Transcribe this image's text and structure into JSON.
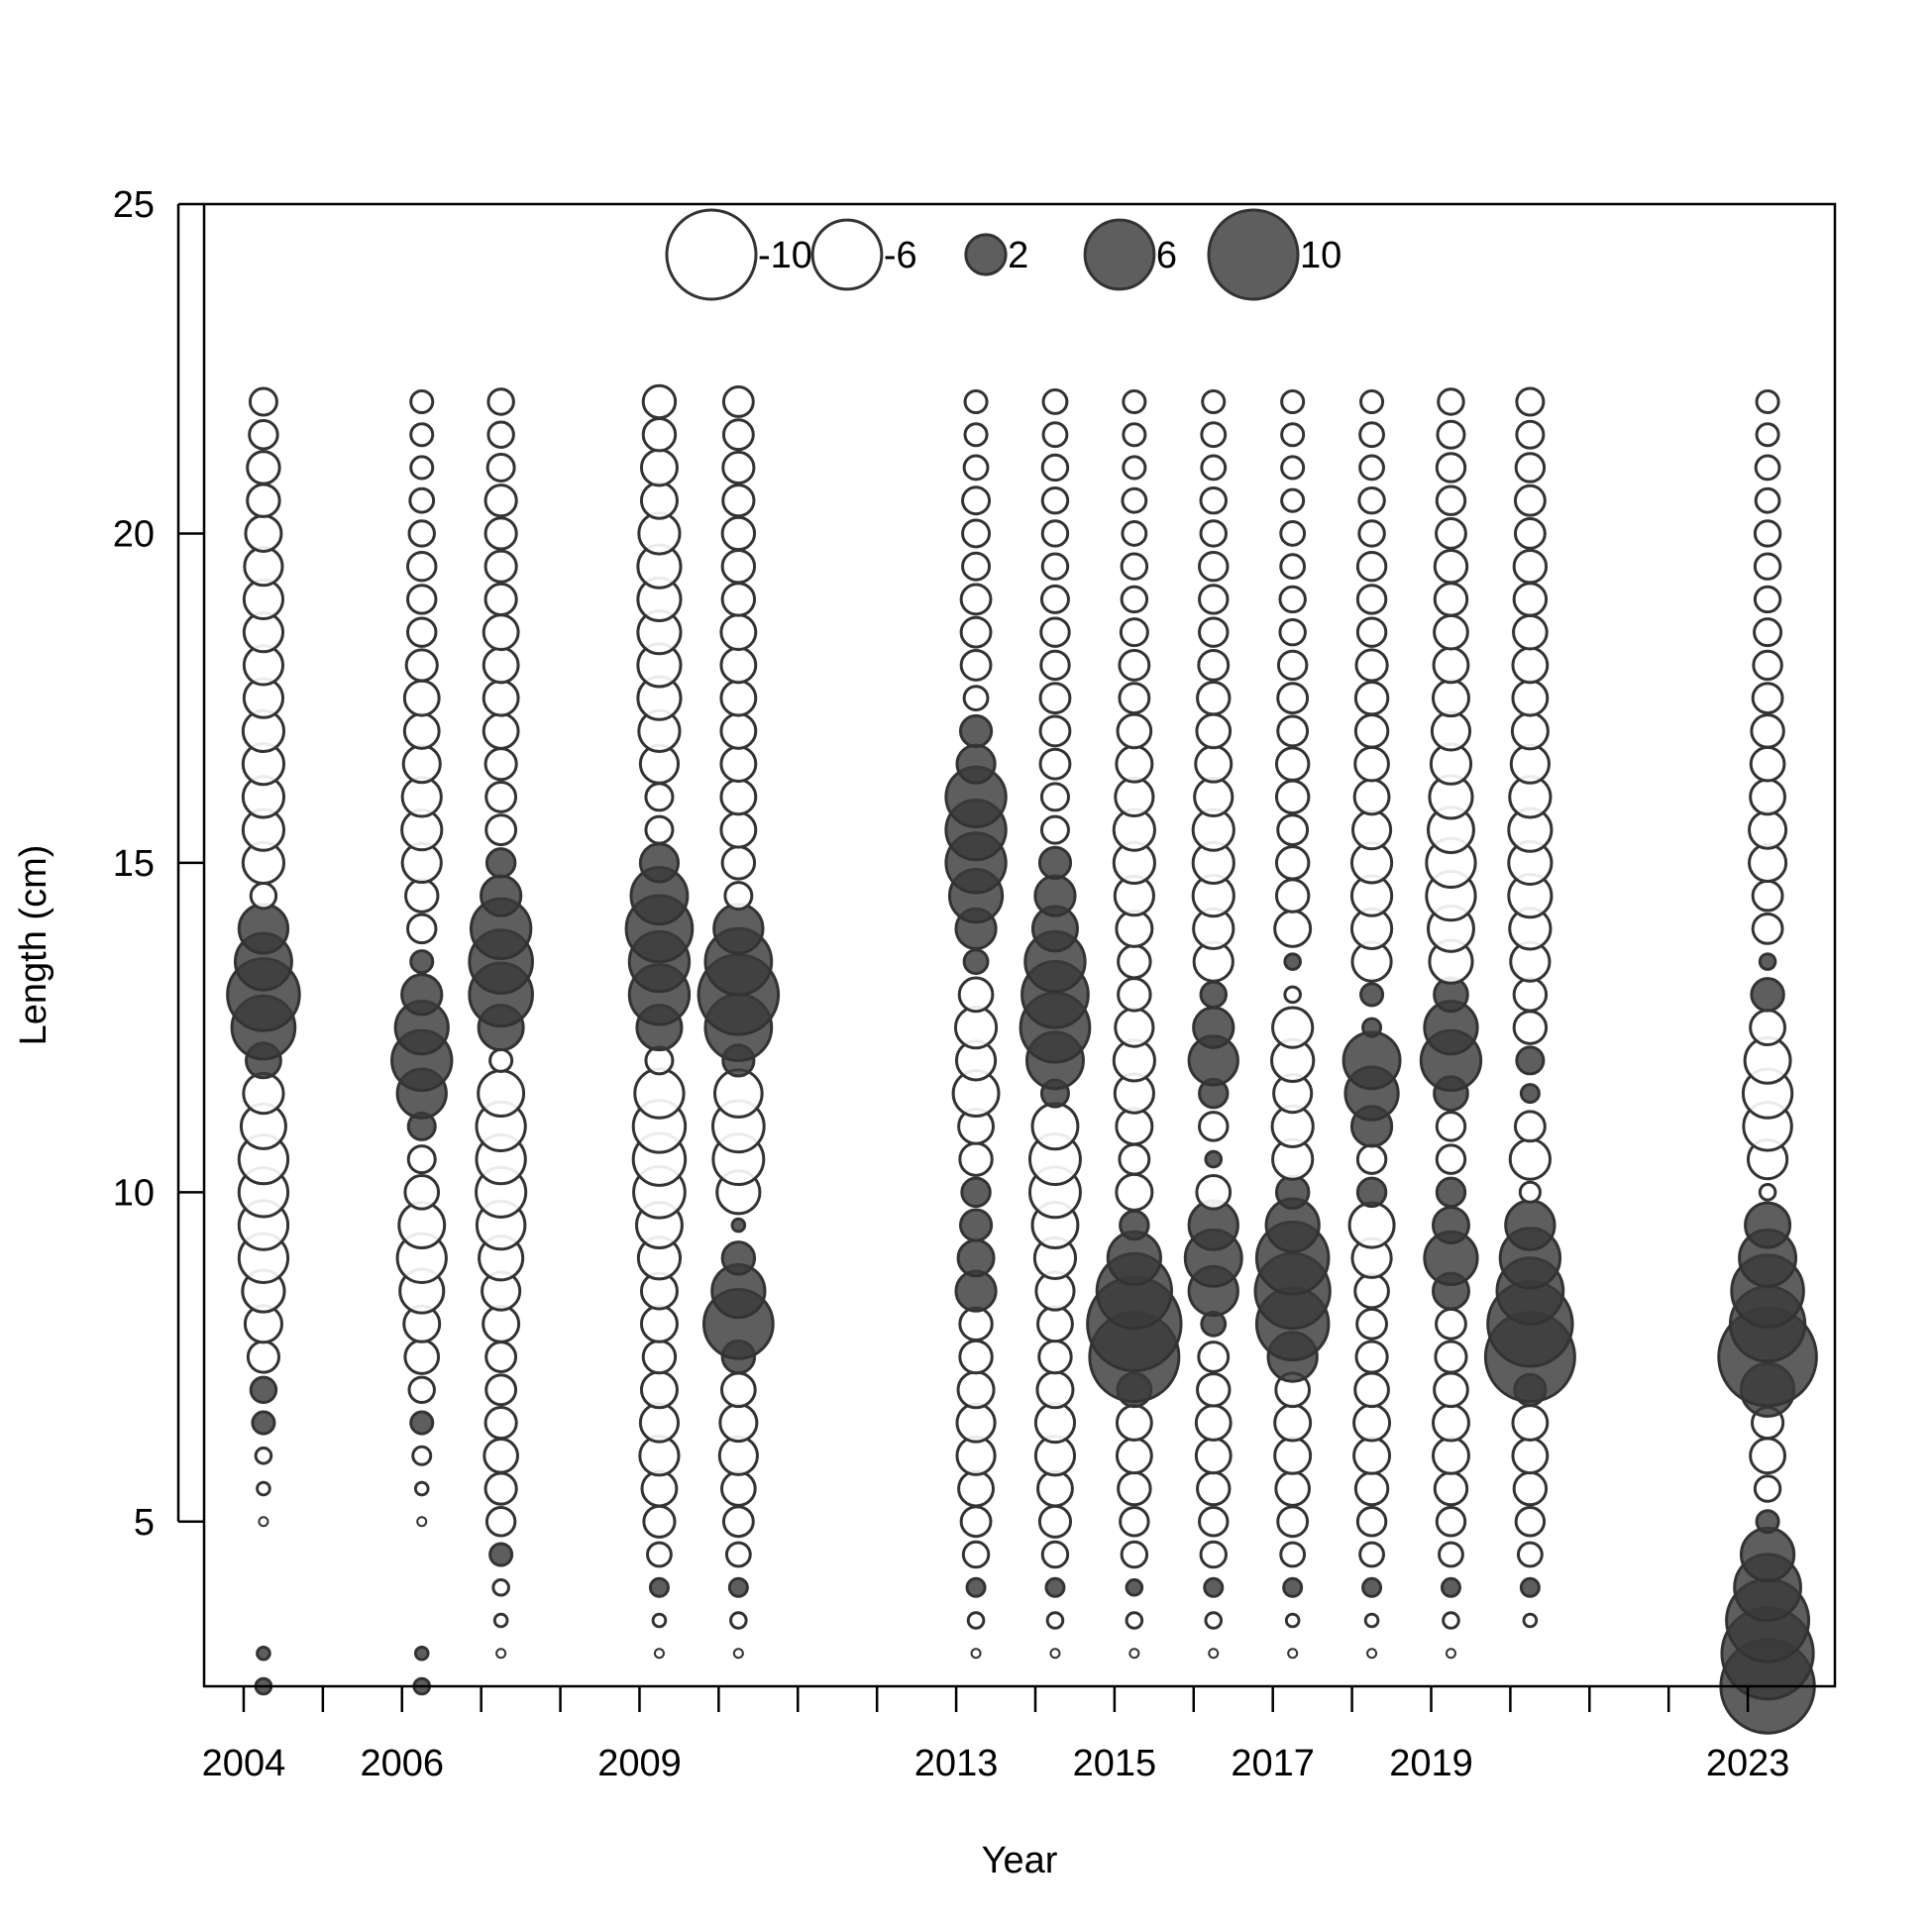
{
  "chart_data": {
    "type": "scatter",
    "subtype": "bubble",
    "title": "",
    "xlabel": "Year",
    "ylabel": "Length (cm)",
    "xlim": [
      2003.5,
      2024.1
    ],
    "ylim": [
      2.5,
      25
    ],
    "x_ticks": [
      2004,
      2005,
      2006,
      2007,
      2008,
      2009,
      2010,
      2011,
      2012,
      2013,
      2014,
      2015,
      2016,
      2017,
      2018,
      2019,
      2020,
      2021,
      2022,
      2023
    ],
    "x_tick_labels": [
      {
        "value": 2004,
        "label": "2004"
      },
      {
        "value": 2006,
        "label": "2006"
      },
      {
        "value": 2009,
        "label": "2009"
      },
      {
        "value": 2013,
        "label": "2013"
      },
      {
        "value": 2015,
        "label": "2015"
      },
      {
        "value": 2017,
        "label": "2017"
      },
      {
        "value": 2019,
        "label": "2019"
      },
      {
        "value": 2023,
        "label": "2023"
      }
    ],
    "y_ticks": [
      5,
      10,
      15,
      20,
      25
    ],
    "grid": false,
    "legend_position": "top-center",
    "legend": [
      {
        "value": -10,
        "label": "-10"
      },
      {
        "value": -6,
        "label": "-6"
      },
      {
        "value": 2,
        "label": "2"
      },
      {
        "value": 6,
        "label": "6"
      },
      {
        "value": 10,
        "label": "10"
      }
    ],
    "colors": {
      "positive_fill": "#3a3a3a",
      "negative_fill": "#ffffff",
      "stroke": "#333333"
    },
    "sample_year_offset": 0.25,
    "series": [
      {
        "year": 2004,
        "lengths": [
          2.5,
          3,
          3.5,
          4,
          4.5,
          5,
          5.5,
          6,
          6.5,
          7,
          7.5,
          8,
          8.5,
          9,
          9.5,
          10,
          10.5,
          11,
          11.5,
          12,
          12.5,
          13,
          13.5,
          14,
          14.5,
          15,
          15.5,
          16,
          16.5,
          17,
          17.5,
          18,
          18.5,
          19,
          19.5,
          20,
          20.5,
          21,
          21.5,
          22
        ],
        "residuals": [
          0.3,
          0.2,
          0,
          0,
          0,
          -0.1,
          -0.2,
          -0.3,
          0.6,
          0.8,
          -1.2,
          -1.7,
          -2.2,
          -3.0,
          -3.0,
          -3.0,
          -3.0,
          -2.5,
          -2.0,
          1.5,
          5.0,
          6.5,
          4.0,
          3.0,
          -0.8,
          -2.1,
          -2.1,
          -2.1,
          -2.1,
          -2.1,
          -1.9,
          -1.9,
          -1.9,
          -1.9,
          -1.8,
          -1.6,
          -1.3,
          -1.3,
          -1.0,
          -0.9
        ]
      },
      {
        "year": 2006,
        "lengths": [
          2.5,
          3,
          3.5,
          4,
          4.5,
          5,
          5.5,
          6,
          6.5,
          7,
          7.5,
          8,
          8.5,
          9,
          9.5,
          10,
          10.5,
          11,
          11.5,
          12,
          12.5,
          13,
          13.5,
          14,
          14.5,
          15,
          15.5,
          16,
          16.5,
          17,
          17.5,
          18,
          18.5,
          19,
          19.5,
          20,
          20.5,
          21,
          21.5,
          22
        ],
        "residuals": [
          0.3,
          0.2,
          0,
          0,
          0,
          -0.1,
          -0.2,
          -0.4,
          0.6,
          -0.8,
          -1.4,
          -1.6,
          -2.4,
          -3.0,
          -2.6,
          -1.4,
          -0.9,
          0.9,
          3.0,
          4.5,
          3.5,
          2.0,
          0.6,
          -1.0,
          -1.3,
          -1.9,
          -2.0,
          -1.9,
          -1.7,
          -1.5,
          -1.5,
          -1.2,
          -1.0,
          -1.0,
          -1.0,
          -0.8,
          -0.7,
          -0.6,
          -0.6,
          -0.6
        ]
      },
      {
        "year": 2007,
        "lengths": [
          3,
          3.5,
          4,
          4.5,
          5,
          5.5,
          6,
          6.5,
          7,
          7.5,
          8,
          8.5,
          9,
          9.5,
          10,
          10.5,
          11,
          11.5,
          12,
          12.5,
          13,
          13.5,
          14,
          14.5,
          15,
          15.5,
          16,
          16.5,
          17,
          17.5,
          18,
          18.5,
          19,
          19.5,
          20,
          20.5,
          21,
          21.5,
          22
        ],
        "residuals": [
          -0.1,
          -0.2,
          -0.3,
          0.6,
          -1.0,
          -1.2,
          -1.4,
          -1.2,
          -1.1,
          -1.1,
          -1.6,
          -1.8,
          -2.4,
          -2.9,
          -3.1,
          -3.0,
          -3.0,
          -2.6,
          -0.6,
          2.5,
          5.0,
          5.0,
          4.5,
          2.0,
          1.0,
          -1.1,
          -1.1,
          -1.2,
          -1.5,
          -1.5,
          -1.5,
          -1.5,
          -1.2,
          -1.2,
          -1.2,
          -1.2,
          -0.9,
          -0.8,
          -0.8
        ]
      },
      {
        "year": 2009,
        "lengths": [
          3,
          3.5,
          4,
          4.5,
          5,
          5.5,
          6,
          6.5,
          7,
          7.5,
          8,
          8.5,
          9,
          9.5,
          10,
          10.5,
          11,
          11.5,
          12,
          12.5,
          13,
          13.5,
          14,
          14.5,
          15,
          15.5,
          16,
          16.5,
          17,
          17.5,
          18,
          18.5,
          19,
          19.5,
          20,
          20.5,
          21,
          21.5,
          22
        ],
        "residuals": [
          -0.1,
          -0.2,
          0.4,
          -0.7,
          -1.2,
          -1.5,
          -1.9,
          -1.8,
          -1.6,
          -1.3,
          -1.6,
          -1.6,
          -2.2,
          -2.6,
          -3.3,
          -3.4,
          -3.4,
          -3.0,
          -0.9,
          2.5,
          4.5,
          4.5,
          5.5,
          4.0,
          1.8,
          -0.9,
          -0.9,
          -1.8,
          -2.1,
          -2.3,
          -2.3,
          -2.3,
          -2.3,
          -2.3,
          -2.1,
          -1.6,
          -1.6,
          -1.3,
          -1.3
        ]
      },
      {
        "year": 2010,
        "lengths": [
          3,
          3.5,
          4,
          4.5,
          5,
          5.5,
          6,
          6.5,
          7,
          7.5,
          8,
          8.5,
          9,
          9.5,
          10,
          10.5,
          11,
          11.5,
          12,
          12.5,
          13,
          13.5,
          14,
          14.5,
          15,
          15.5,
          16,
          16.5,
          17,
          17.5,
          18,
          18.5,
          19,
          19.5,
          20,
          20.5,
          21,
          21.5,
          22
        ],
        "residuals": [
          -0.1,
          -0.3,
          0.4,
          -0.7,
          -1.1,
          -1.4,
          -1.8,
          -1.7,
          -1.4,
          1.3,
          6.0,
          3.5,
          1.3,
          0.2,
          -2.3,
          -3.2,
          -3.3,
          -2.8,
          1.2,
          5.5,
          8.0,
          5.5,
          3.0,
          -0.9,
          -1.3,
          -1.5,
          -1.5,
          -1.5,
          -1.5,
          -1.5,
          -1.5,
          -1.5,
          -1.3,
          -1.3,
          -1.3,
          -1.2,
          -1.2,
          -1.1,
          -1.1
        ]
      },
      {
        "year": 2013,
        "lengths": [
          3,
          3.5,
          4,
          4.5,
          5,
          5.5,
          6,
          6.5,
          7,
          7.5,
          8,
          8.5,
          9,
          9.5,
          10,
          10.5,
          11,
          11.5,
          12,
          12.5,
          13,
          13.5,
          14,
          14.5,
          15,
          15.5,
          16,
          16.5,
          17,
          17.5,
          18,
          18.5,
          19,
          19.5,
          20,
          20.5,
          21,
          21.5,
          22
        ],
        "residuals": [
          -0.1,
          -0.3,
          0.4,
          -0.8,
          -1.1,
          -1.5,
          -1.8,
          -1.8,
          -1.6,
          -1.3,
          -1.3,
          2.0,
          1.6,
          1.2,
          1.0,
          -1.3,
          -1.5,
          -2.6,
          -1.9,
          -2.1,
          -1.4,
          0.7,
          2.0,
          3.5,
          4.5,
          4.5,
          4.5,
          1.8,
          1.2,
          -0.7,
          -1.1,
          -1.1,
          -1.1,
          -0.9,
          -0.9,
          -0.9,
          -0.7,
          -0.6,
          -0.6
        ]
      },
      {
        "year": 2014,
        "lengths": [
          3,
          3.5,
          4,
          4.5,
          5,
          5.5,
          6,
          6.5,
          7,
          7.5,
          8,
          8.5,
          9,
          9.5,
          10,
          10.5,
          11,
          11.5,
          12,
          12.5,
          13,
          13.5,
          14,
          14.5,
          15,
          15.5,
          16,
          16.5,
          17,
          17.5,
          18,
          18.5,
          19,
          19.5,
          20,
          20.5,
          21,
          21.5,
          22
        ],
        "residuals": [
          -0.1,
          -0.3,
          0.4,
          -0.8,
          -1.2,
          -1.5,
          -1.9,
          -1.9,
          -1.6,
          -1.3,
          -1.5,
          -1.8,
          -2.1,
          -2.6,
          -3.2,
          -3.2,
          -2.6,
          0.9,
          4.0,
          6.0,
          5.5,
          4.5,
          2.5,
          2.0,
          1.2,
          -0.9,
          -0.9,
          -1.1,
          -1.1,
          -1.1,
          -1.0,
          -1.0,
          -0.9,
          -0.8,
          -0.8,
          -0.8,
          -0.8,
          -0.7,
          -0.7
        ]
      },
      {
        "year": 2015,
        "lengths": [
          3,
          3.5,
          4,
          4.5,
          5,
          5.5,
          6,
          6.5,
          7,
          7.5,
          8,
          8.5,
          9,
          9.5,
          10,
          10.5,
          11,
          11.5,
          12,
          12.5,
          13,
          13.5,
          14,
          14.5,
          15,
          15.5,
          16,
          16.5,
          17,
          17.5,
          18,
          18.5,
          19,
          19.5,
          20,
          20.5,
          21,
          21.5,
          22
        ],
        "residuals": [
          -0.1,
          -0.3,
          0.3,
          -0.8,
          -1.0,
          -1.3,
          -1.5,
          -1.5,
          1.4,
          10.0,
          11.0,
          7.0,
          3.5,
          1.0,
          -1.6,
          -1.1,
          -1.6,
          -1.9,
          -2.1,
          -1.8,
          -1.3,
          -1.3,
          -1.6,
          -1.9,
          -2.1,
          -2.1,
          -1.8,
          -1.6,
          -1.4,
          -1.1,
          -1.1,
          -0.9,
          -0.8,
          -0.8,
          -0.7,
          -0.7,
          -0.6,
          -0.6,
          -0.6
        ]
      },
      {
        "year": 2016,
        "lengths": [
          3,
          3.5,
          4,
          4.5,
          5,
          5.5,
          6,
          6.5,
          7,
          7.5,
          8,
          8.5,
          9,
          9.5,
          10,
          10.5,
          11,
          11.5,
          12,
          12.5,
          13,
          13.5,
          14,
          14.5,
          15,
          15.5,
          16,
          16.5,
          17,
          17.5,
          18,
          18.5,
          19,
          19.5,
          20,
          20.5,
          21,
          21.5,
          22
        ],
        "residuals": [
          -0.1,
          -0.3,
          0.4,
          -0.8,
          -1.0,
          -1.3,
          -1.5,
          -1.5,
          -1.3,
          -1.1,
          0.7,
          3.0,
          4.0,
          3.0,
          -1.4,
          0.3,
          -1.0,
          1.0,
          3.0,
          2.0,
          0.8,
          -1.9,
          -2.0,
          -2.1,
          -2.1,
          -2.1,
          -1.8,
          -1.6,
          -1.4,
          -1.3,
          -1.1,
          -1.0,
          -1.0,
          -1.0,
          -0.8,
          -0.8,
          -0.7,
          -0.7,
          -0.6
        ]
      },
      {
        "year": 2017,
        "lengths": [
          3,
          3.5,
          4,
          4.5,
          5,
          5.5,
          6,
          6.5,
          7,
          7.5,
          8,
          8.5,
          9,
          9.5,
          10,
          10.5,
          11,
          11.5,
          12,
          12.5,
          13,
          13.5,
          14,
          14.5,
          15,
          15.5,
          16,
          16.5,
          17,
          17.5,
          18,
          18.5,
          19,
          19.5,
          20,
          20.5,
          21,
          21.5,
          22
        ],
        "residuals": [
          -0.1,
          -0.2,
          0.4,
          -0.7,
          -1.1,
          -1.4,
          -1.6,
          -1.6,
          -1.4,
          3.0,
          6.5,
          7.0,
          6.5,
          3.5,
          1.3,
          -2.0,
          -2.1,
          -1.8,
          -2.2,
          -2.0,
          -0.3,
          0.3,
          -1.6,
          -1.3,
          -1.3,
          -1.1,
          -1.3,
          -1.3,
          -1.1,
          -1.1,
          -1.0,
          -0.8,
          -0.8,
          -0.7,
          -0.7,
          -0.6,
          -0.6,
          -0.6,
          -0.6
        ]
      },
      {
        "year": 2018,
        "lengths": [
          3,
          3.5,
          4,
          4.5,
          5,
          5.5,
          6,
          6.5,
          7,
          7.5,
          8,
          8.5,
          9,
          9.5,
          10,
          10.5,
          11,
          11.5,
          12,
          12.5,
          13,
          13.5,
          14,
          14.5,
          15,
          15.5,
          16,
          16.5,
          17,
          17.5,
          18,
          18.5,
          19,
          19.5,
          20,
          20.5,
          21,
          21.5,
          22
        ],
        "residuals": [
          -0.1,
          -0.2,
          0.4,
          -0.7,
          -1.0,
          -1.3,
          -1.6,
          -1.6,
          -1.4,
          -1.2,
          -1.1,
          -1.4,
          -1.9,
          -2.5,
          1.0,
          -1.0,
          2.0,
          3.5,
          4.0,
          0.4,
          0.6,
          -1.9,
          -2.0,
          -2.0,
          -2.0,
          -1.8,
          -1.5,
          -1.4,
          -1.3,
          -1.3,
          -1.2,
          -1.0,
          -1.0,
          -1.0,
          -0.8,
          -0.8,
          -0.7,
          -0.7,
          -0.6
        ]
      },
      {
        "year": 2019,
        "lengths": [
          3,
          3.5,
          4,
          4.5,
          5,
          5.5,
          6,
          6.5,
          7,
          7.5,
          8,
          8.5,
          9,
          9.5,
          10,
          10.5,
          11,
          11.5,
          12,
          12.5,
          13,
          13.5,
          14,
          14.5,
          15,
          15.5,
          16,
          16.5,
          17,
          17.5,
          18,
          18.5,
          19,
          19.5,
          20,
          20.5,
          21,
          21.5,
          22
        ],
        "residuals": [
          -0.1,
          -0.3,
          0.4,
          -0.7,
          -1.0,
          -1.3,
          -1.6,
          -1.6,
          -1.4,
          -1.2,
          -1.1,
          1.6,
          3.5,
          1.6,
          1.0,
          -1.0,
          -1.0,
          1.4,
          4.5,
          3.5,
          1.4,
          -2.3,
          -2.6,
          -3.0,
          -3.0,
          -2.6,
          -2.3,
          -2.0,
          -1.8,
          -1.6,
          -1.5,
          -1.4,
          -1.3,
          -1.3,
          -1.1,
          -1.0,
          -1.0,
          -0.9,
          -0.8
        ]
      },
      {
        "year": 2020,
        "lengths": [
          3.5,
          4,
          4.5,
          5,
          5.5,
          6,
          6.5,
          7,
          7.5,
          8,
          8.5,
          9,
          9.5,
          10,
          10.5,
          11,
          11.5,
          12,
          12.5,
          13,
          13.5,
          14,
          14.5,
          15,
          15.5,
          16,
          16.5,
          17,
          17.5,
          18,
          18.5,
          19,
          19.5,
          20,
          20.5,
          21,
          21.5,
          22
        ],
        "residuals": [
          -0.2,
          0.4,
          -0.7,
          -1.0,
          -1.3,
          -1.5,
          -1.5,
          1.2,
          10.0,
          9.0,
          5.5,
          4.5,
          3.0,
          -0.5,
          -2.0,
          -1.1,
          0.4,
          0.9,
          -1.3,
          -1.3,
          -1.9,
          -2.1,
          -2.3,
          -2.3,
          -2.3,
          -2.1,
          -1.8,
          -1.6,
          -1.5,
          -1.5,
          -1.4,
          -1.3,
          -1.3,
          -1.1,
          -1.1,
          -1.0,
          -0.9,
          -0.9
        ]
      },
      {
        "year": 2023,
        "lengths": [
          2.5,
          3,
          3.5,
          4,
          4.5,
          5,
          5.5,
          6,
          6.5,
          7,
          7.5,
          8,
          8.5,
          9,
          9.5,
          10,
          10.5,
          11,
          11.5,
          12,
          12.5,
          13,
          13.5,
          14,
          14.5,
          15,
          15.5,
          16,
          16.5,
          17,
          17.5,
          18,
          18.5,
          19,
          19.5,
          20,
          20.5,
          21,
          21.5,
          22
        ],
        "residuals": [
          11.0,
          10.5,
          8.5,
          5.5,
          3.5,
          0.6,
          -0.8,
          -1.5,
          -1.2,
          3.5,
          12.0,
          7.0,
          6.5,
          4.0,
          2.5,
          -0.3,
          -1.9,
          -2.9,
          -3.0,
          -2.6,
          -1.5,
          1.3,
          0.3,
          -1.1,
          -1.1,
          -1.7,
          -1.7,
          -1.5,
          -1.4,
          -1.3,
          -1.1,
          -1.0,
          -0.9,
          -0.8,
          -0.8,
          -0.8,
          -0.7,
          -0.7,
          -0.6,
          -0.6
        ]
      }
    ]
  }
}
